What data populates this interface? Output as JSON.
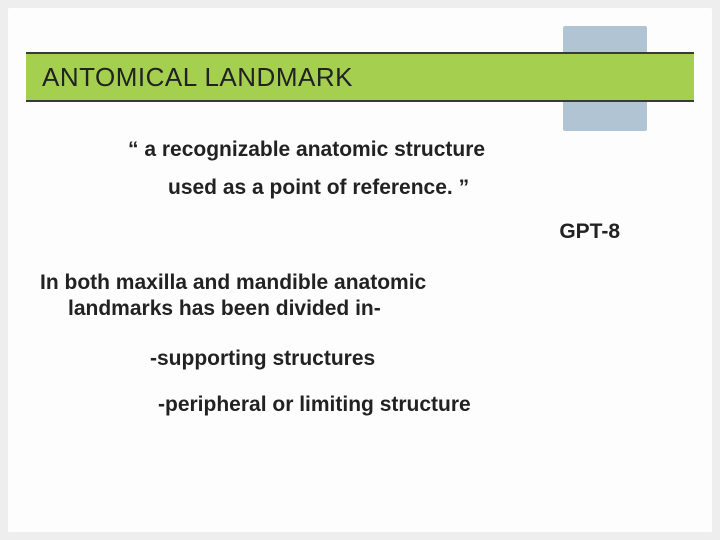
{
  "slide": {
    "background_color": "#fdfdfd",
    "page_background": "#eeeeee",
    "deco_box_color": "#b0c4d4",
    "title_bar": {
      "background": "#a5d04f",
      "border_color": "#3a3a3a",
      "border_width": 2,
      "text": "ANTOMICAL LANDMARK",
      "font_size": 26,
      "font_color": "#222222"
    },
    "body": {
      "font_size": 21,
      "font_weight": 700,
      "font_color": "#222222",
      "quote_line1": "“ a recognizable anatomic structure",
      "quote_line2": "used as a point of reference. ”",
      "attribution": "GPT-8",
      "paragraph_line1": "In both maxilla and mandible anatomic",
      "paragraph_line2": "landmarks has been divided in-",
      "bullet1": "-supporting structures",
      "bullet2": "-peripheral or limiting structure"
    }
  }
}
